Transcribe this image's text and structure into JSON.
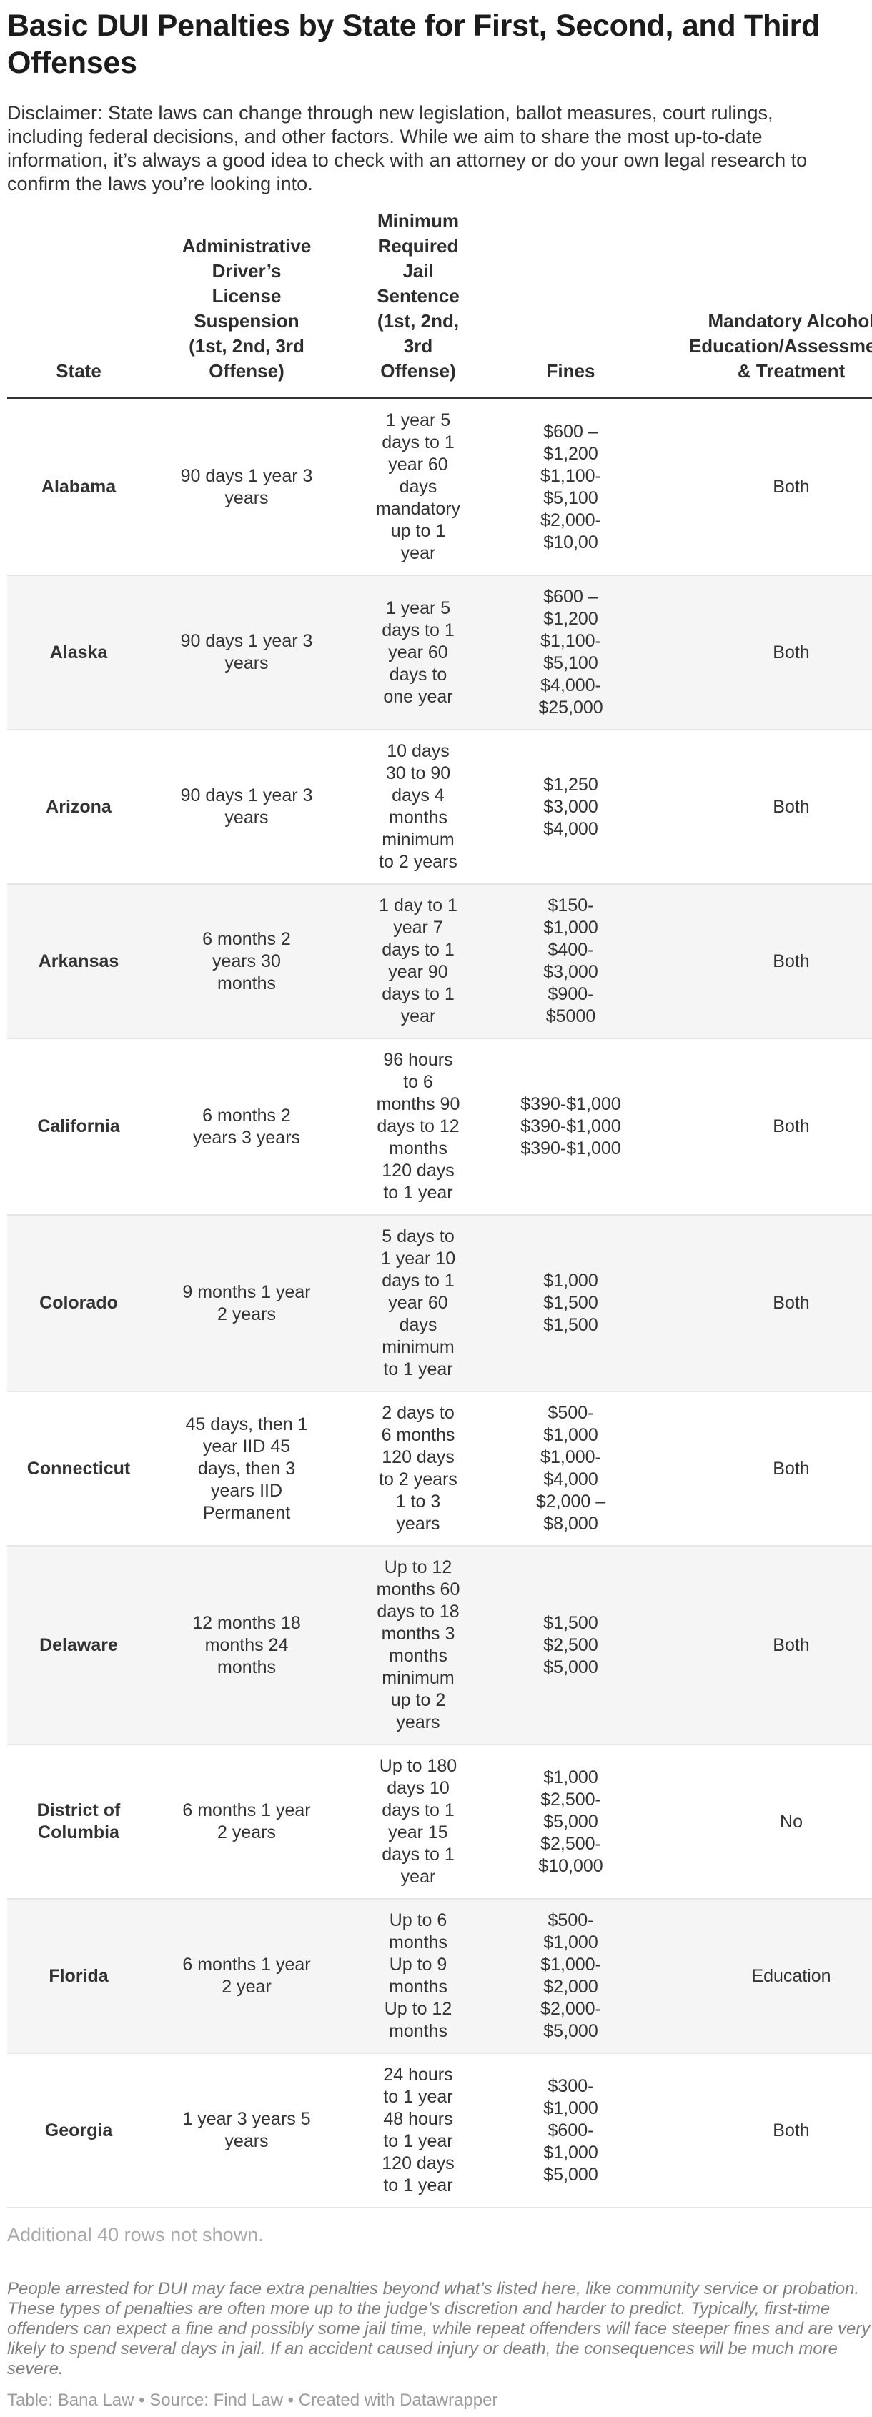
{
  "title": "Basic DUI Penalties by State for First, Second, and Third\nOffenses",
  "description": "Disclaimer: State laws can change through new legislation, ballot measures, court rulings,\nincluding federal decisions, and other factors. While we aim to share the most up-to-date\ninformation, it’s always a good idea to check with an attorney or do your own legal research to\nconfirm the laws you’re looking into.",
  "table": {
    "headers": [
      {
        "key": "state",
        "label": "State"
      },
      {
        "key": "suspension",
        "label": "Administrative\nDriver’s\nLicense\nSuspension\n(1st, 2nd, 3rd\nOffense)"
      },
      {
        "key": "jail",
        "label": "Minimum\nRequired\nJail\nSentence\n(1st, 2nd,\n3rd\nOffense)"
      },
      {
        "key": "fines",
        "label": "Fines"
      },
      {
        "key": "education",
        "label": "Mandatory Alcohol\nEducation/Assessment\n& Treatment"
      }
    ],
    "rows": [
      {
        "state": "Alabama",
        "suspension": "90 days 1 year 3\nyears",
        "jail": "1 year 5\ndays to 1\nyear 60\ndays\nmandatory\nup to 1\nyear",
        "fines": "$600 –\n$1,200\n$1,100-\n$5,100\n$2,000-\n$10,00",
        "education": "Both"
      },
      {
        "state": "Alaska",
        "suspension": "90 days 1 year 3\nyears",
        "jail": "1 year 5\ndays to 1\nyear 60\ndays to\none year",
        "fines": "$600 –\n$1,200\n$1,100-\n$5,100\n$4,000-\n$25,000",
        "education": "Both"
      },
      {
        "state": "Arizona",
        "suspension": "90 days 1 year 3\nyears",
        "jail": "10 days\n30 to 90\ndays 4\nmonths\nminimum\nto 2 years",
        "fines": "$1,250\n$3,000\n$4,000",
        "education": "Both"
      },
      {
        "state": "Arkansas",
        "suspension": "6 months 2\nyears 30\nmonths",
        "jail": "1 day to 1\nyear 7\ndays to 1\nyear 90\ndays to 1\nyear",
        "fines": "$150-\n$1,000\n$400-\n$3,000\n$900-\n$5000",
        "education": "Both"
      },
      {
        "state": "California",
        "suspension": "6 months 2\nyears 3 years",
        "jail": "96 hours\nto 6\nmonths 90\ndays to 12\nmonths\n120 days\nto 1 year",
        "fines": "$390-$1,000\n$390-$1,000\n$390-$1,000",
        "education": "Both"
      },
      {
        "state": "Colorado",
        "suspension": "9 months 1 year\n2 years",
        "jail": "5 days to\n1 year 10\ndays to 1\nyear 60\ndays\nminimum\nto 1 year",
        "fines": "$1,000\n$1,500\n$1,500",
        "education": "Both"
      },
      {
        "state": "Connecticut",
        "suspension": "45 days, then 1\nyear IID 45\ndays, then 3\nyears IID\nPermanent",
        "jail": "2 days to\n6 months\n120 days\nto 2 years\n1 to 3\nyears",
        "fines": "$500-\n$1,000\n$1,000-\n$4,000\n$2,000 –\n$8,000",
        "education": "Both"
      },
      {
        "state": "Delaware",
        "suspension": "12 months 18\nmonths 24\nmonths",
        "jail": "Up to 12\nmonths 60\ndays to 18\nmonths 3\nmonths\nminimum\nup to 2\nyears",
        "fines": "$1,500\n$2,500\n$5,000",
        "education": "Both"
      },
      {
        "state": "District of\nColumbia",
        "suspension": "6 months 1 year\n2 years",
        "jail": "Up to 180\ndays 10\ndays to 1\nyear 15\ndays to 1\nyear",
        "fines": "$1,000\n$2,500-\n$5,000\n$2,500-\n$10,000",
        "education": "No"
      },
      {
        "state": "Florida",
        "suspension": "6 months 1 year\n2 year",
        "jail": "Up to 6\nmonths\nUp to 9\nmonths\nUp to 12\nmonths",
        "fines": "$500-\n$1,000\n$1,000-\n$2,000\n$2,000-\n$5,000",
        "education": "Education"
      },
      {
        "state": "Georgia",
        "suspension": "1 year 3 years 5\nyears",
        "jail": "24 hours\nto 1 year\n48 hours\nto 1 year\n120 days\nto 1 year",
        "fines": "$300-\n$1,000\n$600-\n$1,000\n$5,000",
        "education": "Both"
      }
    ]
  },
  "additional_note": "Additional 40 rows not shown.",
  "footnote": "People arrested for DUI may face extra penalties beyond what’s listed here, like community service or probation.\nThese types of penalties are often more up to the judge’s discretion and harder to predict. Typically, first-time\noffenders can expect a fine and possibly some jail time, while repeat offenders will face steeper fines and are very\nlikely to spend several days in jail. If an accident caused injury or death, the consequences will be much more\nsevere.",
  "credit": "Table: Bana Law • Source: Find Law • Created with Datawrapper",
  "colors": {
    "title": "#1c1c1c",
    "body_text": "#333333",
    "zebra_row": "#f5f5f5",
    "row_border": "#e6e6e6",
    "header_rule": "#333333",
    "muted_note": "#a9a9a9",
    "footnote_gray": "#7f7f7f"
  },
  "chart_data": {
    "type": "table",
    "title": "Basic DUI Penalties by State for First, Second, and Third Offenses",
    "columns": [
      "State",
      "Administrative Driver’s License Suspension (1st, 2nd, 3rd Offense)",
      "Minimum Required Jail Sentence (1st, 2nd, 3rd Offense)",
      "Fines",
      "Mandatory Alcohol Education/Assessment & Treatment"
    ],
    "rows": [
      [
        "Alabama",
        "90 days 1 year 3 years",
        "1 year 5 days to 1 year 60 days mandatory up to 1 year",
        "$600 – $1,200 $1,100-$5,100 $2,000-$10,00",
        "Both"
      ],
      [
        "Alaska",
        "90 days 1 year 3 years",
        "1 year 5 days to 1 year 60 days to one year",
        "$600 – $1,200 $1,100-$5,100 $4,000-$25,000",
        "Both"
      ],
      [
        "Arizona",
        "90 days 1 year 3 years",
        "10 days 30 to 90 days 4 months minimum to 2 years",
        "$1,250 $3,000 $4,000",
        "Both"
      ],
      [
        "Arkansas",
        "6 months 2 years 30 months",
        "1 day to 1 year 7 days to 1 year 90 days to 1 year",
        "$150-$1,000 $400-$3,000 $900-$5000",
        "Both"
      ],
      [
        "California",
        "6 months 2 years 3 years",
        "96 hours to 6 months 90 days to 12 months 120 days to 1 year",
        "$390-$1,000 $390-$1,000 $390-$1,000",
        "Both"
      ],
      [
        "Colorado",
        "9 months 1 year 2 years",
        "5 days to 1 year 10 days to 1 year 60 days minimum to 1 year",
        "$1,000 $1,500 $1,500",
        "Both"
      ],
      [
        "Connecticut",
        "45 days, then 1 year IID 45 days, then 3 years IID Permanent",
        "2 days to 6 months 120 days to 2 years 1 to 3 years",
        "$500-$1,000 $1,000-$4,000 $2,000 – $8,000",
        "Both"
      ],
      [
        "Delaware",
        "12 months 18 months 24 months",
        "Up to 12 months 60 days to 18 months 3 months minimum up to 2 years",
        "$1,500 $2,500 $5,000",
        "Both"
      ],
      [
        "District of Columbia",
        "6 months 1 year 2 years",
        "Up to 180 days 10 days to 1 year 15 days to 1 year",
        "$1,000 $2,500-$5,000 $2,500-$10,000",
        "No"
      ],
      [
        "Florida",
        "6 months 1 year 2 year",
        "Up to 6 months Up to 9 months Up to 12 months",
        "$500-$1,000 $1,000-$2,000 $2,000-$5,000",
        "Education"
      ],
      [
        "Georgia",
        "1 year 3 years 5 years",
        "24 hours to 1 year 48 hours to 1 year 120 days to 1 year",
        "$300-$1,000 $600-$1,000 $5,000",
        "Both"
      ]
    ],
    "note": "Additional 40 rows not shown."
  }
}
